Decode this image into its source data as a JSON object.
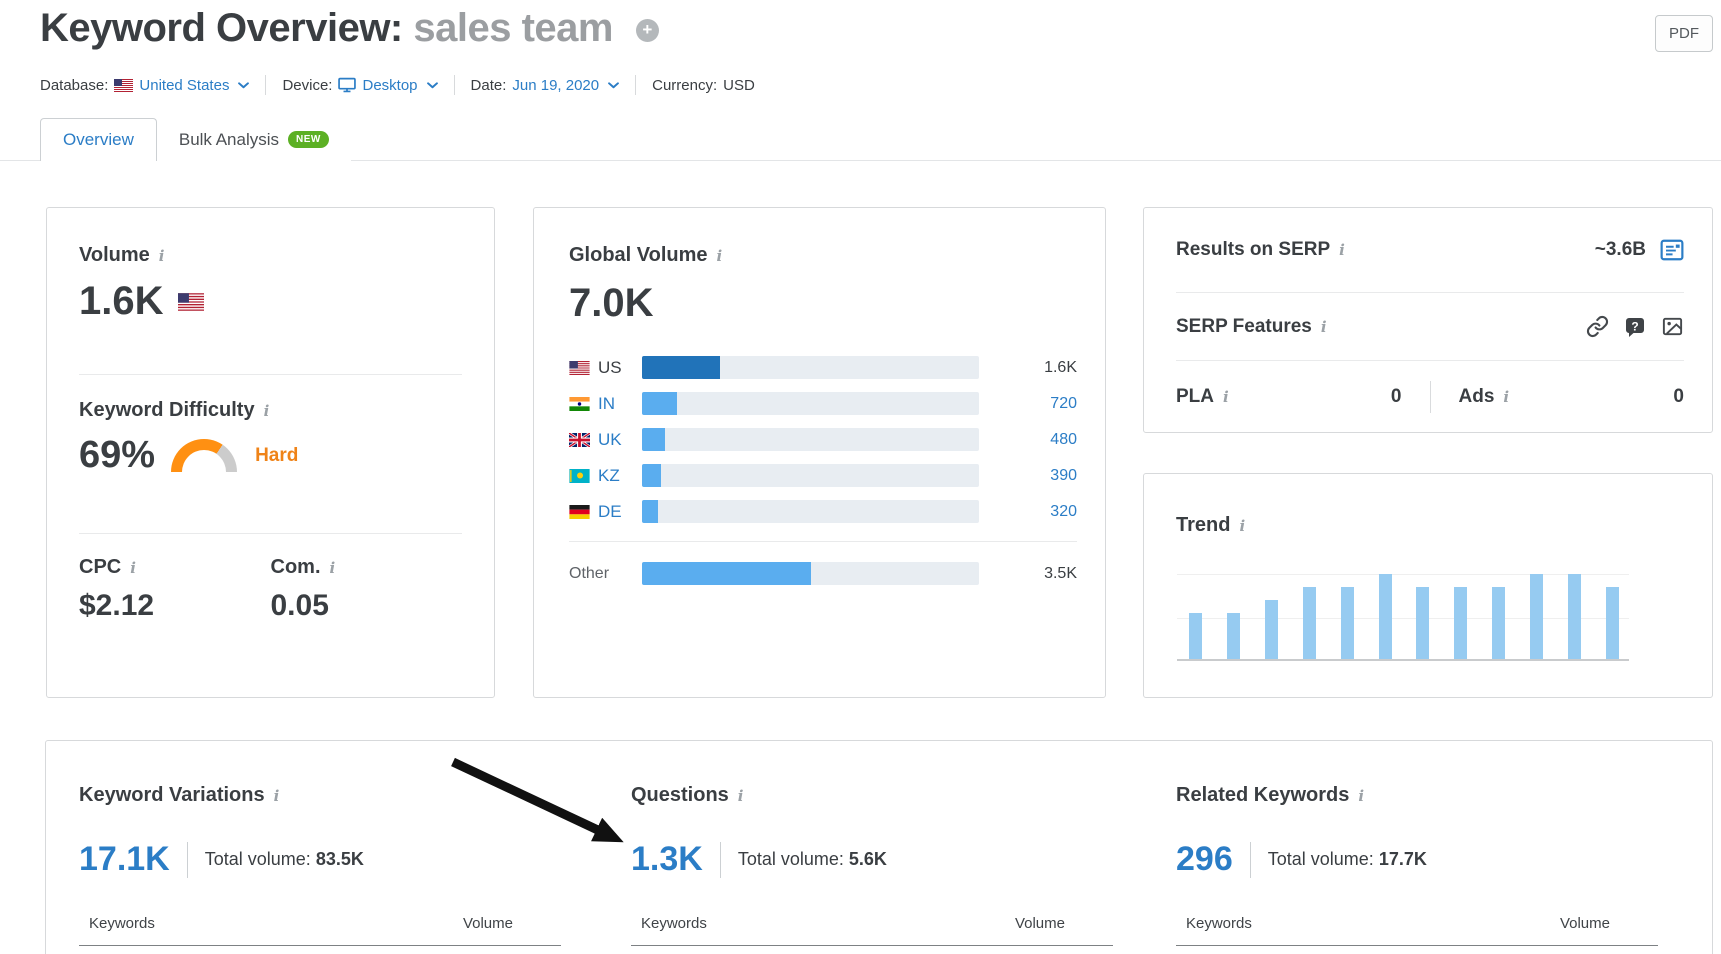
{
  "header": {
    "title_prefix": "Keyword Overview:",
    "title_keyword": "sales team",
    "pdf_label": "PDF"
  },
  "ui": {
    "info_glyph": "i",
    "plus_glyph": "+"
  },
  "filter_bar": {
    "database_label": "Database:",
    "database_value": "United States",
    "device_label": "Device:",
    "device_value": "Desktop",
    "date_label": "Date:",
    "date_value": "Jun 19, 2020",
    "currency_label": "Currency:",
    "currency_value": "USD"
  },
  "tabs": {
    "overview": "Overview",
    "bulk_analysis": "Bulk Analysis",
    "new_badge": "NEW"
  },
  "volume_card": {
    "title": "Volume",
    "value": "1.6K",
    "kd_title": "Keyword Difficulty",
    "kd_value": "69%",
    "kd_pct": 69,
    "kd_rating": "Hard",
    "cpc_label": "CPC",
    "cpc_value": "$2.12",
    "com_label": "Com.",
    "com_value": "0.05"
  },
  "global_volume_card": {
    "title": "Global Volume",
    "value": "7.0K",
    "rows": [
      {
        "code": "US",
        "flag": "us-flag",
        "value": "1.6K",
        "pct": 23,
        "current": true
      },
      {
        "code": "IN",
        "flag": "in-flag",
        "value": "720",
        "pct": 10.3
      },
      {
        "code": "UK",
        "flag": "uk-flag",
        "value": "480",
        "pct": 6.9
      },
      {
        "code": "KZ",
        "flag": "kz-flag",
        "value": "390",
        "pct": 5.6
      },
      {
        "code": "DE",
        "flag": "de-flag",
        "value": "320",
        "pct": 4.6
      }
    ],
    "other": {
      "label": "Other",
      "value": "3.5K",
      "pct": 50
    }
  },
  "serp_card": {
    "results_label": "Results on SERP",
    "results_value": "~3.6B",
    "features_label": "SERP Features",
    "feature_icons": [
      "link-icon",
      "question-bubble-icon",
      "image-icon"
    ],
    "pla_label": "PLA",
    "pla_value": "0",
    "ads_label": "Ads",
    "ads_value": "0"
  },
  "trend_card": {
    "title": "Trend"
  },
  "bottom_sections": [
    {
      "title": "Keyword Variations",
      "count": "17.1K",
      "total_label": "Total volume:",
      "total_value": "83.5K",
      "keywords_header": "Keywords",
      "volume_header": "Volume"
    },
    {
      "title": "Questions",
      "count": "1.3K",
      "total_label": "Total volume:",
      "total_value": "5.6K",
      "keywords_header": "Keywords",
      "volume_header": "Volume"
    },
    {
      "title": "Related Keywords",
      "count": "296",
      "total_label": "Total volume:",
      "total_value": "17.7K",
      "keywords_header": "Keywords",
      "volume_header": "Volume"
    }
  ],
  "annotation": {
    "type": "arrow",
    "color": "#111111",
    "points_at": "Questions count 1.3K"
  },
  "chart_data": [
    {
      "type": "bar",
      "title": "Global Volume by country",
      "orientation": "horizontal",
      "categories": [
        "US",
        "IN",
        "UK",
        "KZ",
        "DE",
        "Other"
      ],
      "values": [
        1600,
        720,
        480,
        390,
        320,
        3500
      ],
      "value_labels": [
        "1.6K",
        "720",
        "480",
        "390",
        "320",
        "3.5K"
      ],
      "total": 7000,
      "bar_pct_of_total": [
        23,
        10.3,
        6.9,
        5.6,
        4.6,
        50
      ],
      "grid": false,
      "legend": false
    },
    {
      "type": "bar",
      "title": "Trend",
      "categories": [
        "1",
        "2",
        "3",
        "4",
        "5",
        "6",
        "7",
        "8",
        "9",
        "10",
        "11",
        "12"
      ],
      "values_relative_pct": [
        54,
        54,
        69,
        85,
        85,
        100,
        85,
        85,
        85,
        100,
        100,
        85
      ],
      "note": "12 monthly bars, axis labels not shown",
      "grid": true,
      "legend": false
    }
  ],
  "colors": {
    "accent_blue": "#2b7dc6",
    "dark_text": "#3a3e42",
    "bar_primary_blue": "#2173b9",
    "bar_light_blue": "#5aadef",
    "trend_bar_blue": "#96cbf1",
    "track_gray": "#e8edf2",
    "gauge_orange": "#ff9012",
    "gauge_track": "#cccccc",
    "difficulty_orange": "#ef8318",
    "new_badge_green": "#5cb024"
  }
}
